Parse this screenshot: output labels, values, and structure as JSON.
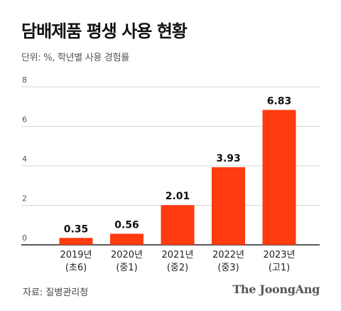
{
  "chart_data": {
    "type": "bar",
    "title": "담배제품 평생 사용 현황",
    "subtitle": "단위: %, 학년별 사용 경험률",
    "categories": [
      {
        "line1": "2019년",
        "line2": "(초6)"
      },
      {
        "line1": "2020년",
        "line2": "(중1)"
      },
      {
        "line1": "2021년",
        "line2": "(중2)"
      },
      {
        "line1": "2022년",
        "line2": "(중3)"
      },
      {
        "line1": "2023년",
        "line2": "(고1)"
      }
    ],
    "values": [
      0.35,
      0.56,
      2.01,
      3.93,
      6.83
    ],
    "value_labels": [
      "0.35",
      "0.56",
      "2.01",
      "3.93",
      "6.83"
    ],
    "yticks": [
      "0",
      "2",
      "4",
      "6",
      "8"
    ],
    "ylim": [
      0,
      8
    ],
    "grid": true,
    "bar_color": "#FF3B0F"
  },
  "footer": {
    "source": "자료: 질병관리청",
    "brand": "The JoongAng"
  }
}
